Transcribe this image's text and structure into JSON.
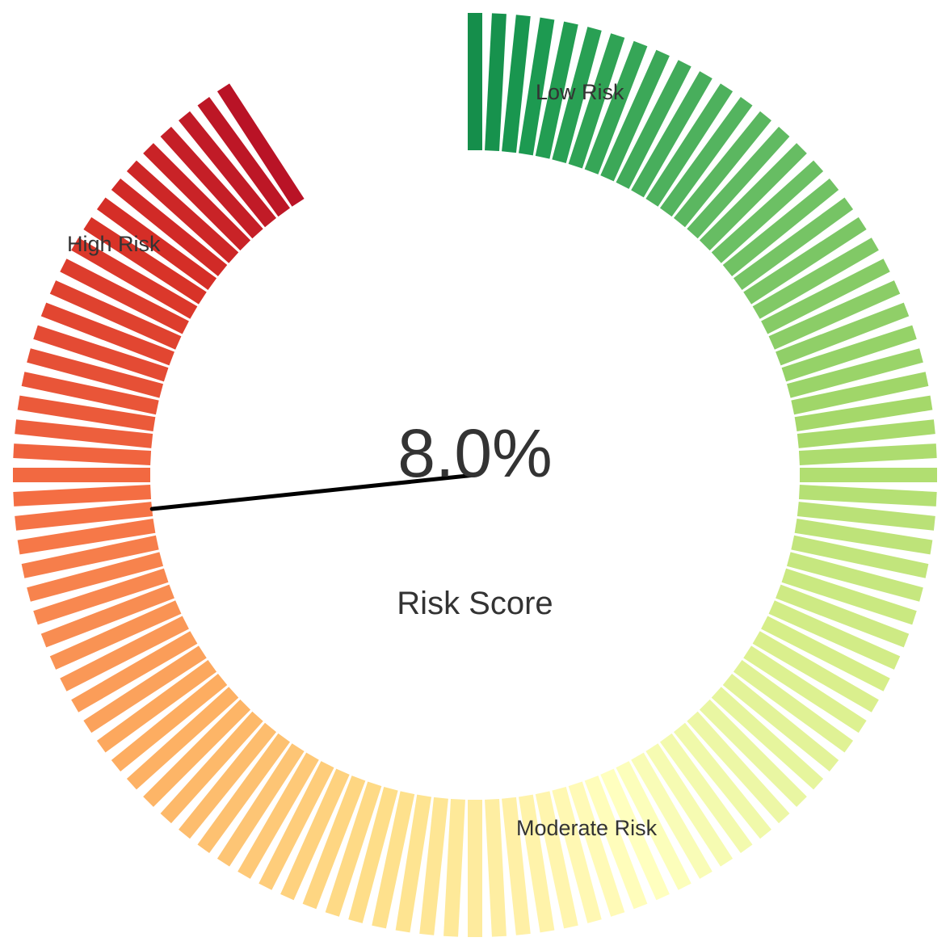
{
  "chart_data": {
    "type": "gauge",
    "value": 8.0,
    "value_label": "8.0%",
    "label": "Risk Score",
    "range": [
      0,
      10
    ],
    "sweep_degrees": 330,
    "zones": [
      {
        "name": "Low Risk"
      },
      {
        "name": "Moderate Risk"
      },
      {
        "name": "High Risk"
      }
    ],
    "color_scale": [
      "#006837",
      "#1a9850",
      "#66bd63",
      "#a6d96a",
      "#d9ef8b",
      "#ffffbf",
      "#fee08b",
      "#fdae61",
      "#f46d43",
      "#d73027",
      "#a50026"
    ]
  }
}
